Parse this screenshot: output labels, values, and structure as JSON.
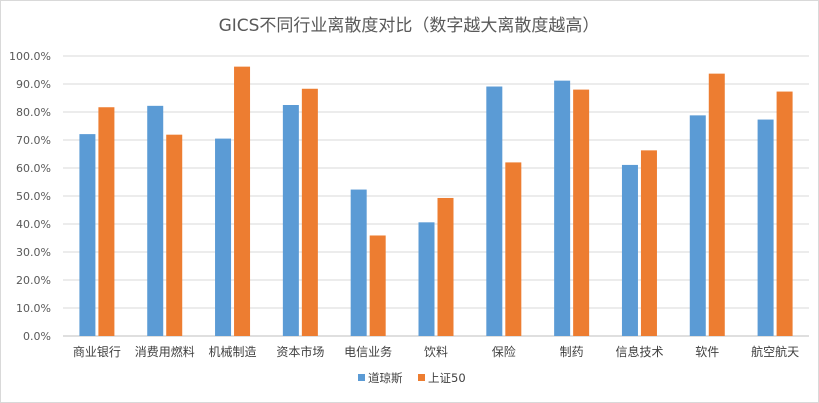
{
  "chart_data": {
    "type": "bar",
    "title": "GICS不同行业离散度对比（数字越大离散度越高）",
    "categories": [
      "商业银行",
      "消费用燃料",
      "机械制造",
      "资本市场",
      "电信业务",
      "饮料",
      "保险",
      "制药",
      "信息技术",
      "软件",
      "航空航天"
    ],
    "series": [
      {
        "name": "道琼斯",
        "color": "#5b9bd5",
        "values": [
          72.1,
          82.2,
          70.5,
          82.5,
          52.3,
          40.6,
          89.1,
          91.2,
          61.1,
          78.8,
          77.3
        ]
      },
      {
        "name": "上证50",
        "color": "#ed7d31",
        "values": [
          81.7,
          71.9,
          96.2,
          88.3,
          35.9,
          49.3,
          62.0,
          88.0,
          66.3,
          93.7,
          87.3
        ]
      }
    ],
    "yticks": [
      "0.0%",
      "10.0%",
      "20.0%",
      "30.0%",
      "40.0%",
      "50.0%",
      "60.0%",
      "70.0%",
      "80.0%",
      "90.0%",
      "100.0%"
    ],
    "ylim": [
      0,
      100
    ],
    "grid": true,
    "legend_position": "bottom"
  }
}
